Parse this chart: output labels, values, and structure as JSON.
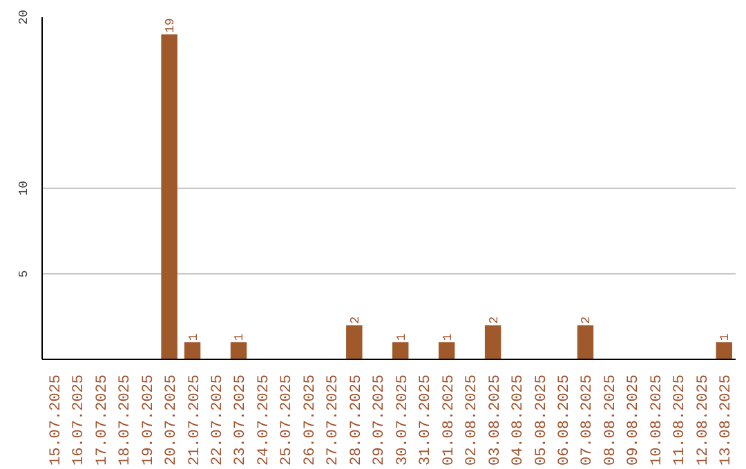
{
  "chart_data": {
    "type": "bar",
    "categories": [
      "15.07.2025",
      "16.07.2025",
      "17.07.2025",
      "18.07.2025",
      "19.07.2025",
      "20.07.2025",
      "21.07.2025",
      "22.07.2025",
      "23.07.2025",
      "24.07.2025",
      "25.07.2025",
      "26.07.2025",
      "27.07.2025",
      "28.07.2025",
      "29.07.2025",
      "30.07.2025",
      "31.07.2025",
      "01.08.2025",
      "02.08.2025",
      "03.08.2025",
      "04.08.2025",
      "05.08.2025",
      "06.08.2025",
      "07.08.2025",
      "08.08.2025",
      "09.08.2025",
      "10.08.2025",
      "11.08.2025",
      "12.08.2025",
      "13.08.2025"
    ],
    "values": [
      0,
      0,
      0,
      0,
      0,
      19,
      1,
      0,
      1,
      0,
      0,
      0,
      0,
      2,
      0,
      1,
      0,
      1,
      0,
      2,
      0,
      0,
      0,
      2,
      0,
      0,
      0,
      0,
      0,
      1
    ],
    "value_labels": [
      null,
      null,
      null,
      null,
      null,
      "19",
      "1",
      null,
      "1",
      null,
      null,
      null,
      null,
      "2",
      null,
      "1",
      null,
      "1",
      null,
      "2",
      null,
      null,
      null,
      "2",
      null,
      null,
      null,
      null,
      null,
      "1"
    ],
    "color": "#a0592b",
    "ylim": [
      0,
      20
    ],
    "yticks": [
      5,
      10,
      20
    ],
    "grid": "y"
  }
}
